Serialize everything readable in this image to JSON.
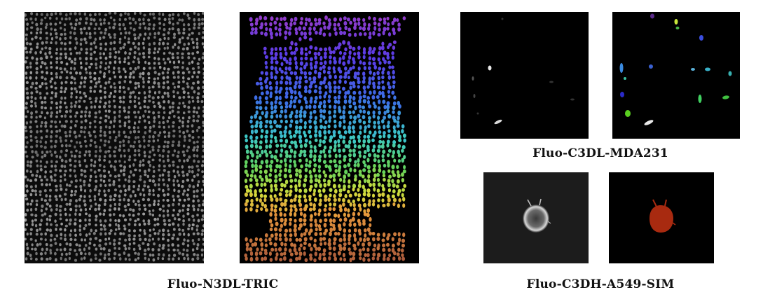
{
  "figure": {
    "captions": {
      "left": "Fluo-N3DL-TRIC",
      "top_right": "Fluo-C3DL-MDA231",
      "bottom_right": "Fluo-C3DH-A549-SIM"
    },
    "panels": [
      {
        "id": "n3dl-raw",
        "kind": "raw grayscale microscopy"
      },
      {
        "id": "n3dl-seg",
        "kind": "segmentation colored by depth"
      },
      {
        "id": "mda231-raw",
        "kind": "raw grayscale microscopy"
      },
      {
        "id": "mda231-seg",
        "kind": "instance segmentation"
      },
      {
        "id": "a549-raw",
        "kind": "raw grayscale microscopy"
      },
      {
        "id": "a549-seg",
        "kind": "instance segmentation"
      }
    ],
    "colors": {
      "background": "#000000",
      "a549_cell": "#a82a10",
      "raw_cells": "#c8c8c8"
    }
  }
}
